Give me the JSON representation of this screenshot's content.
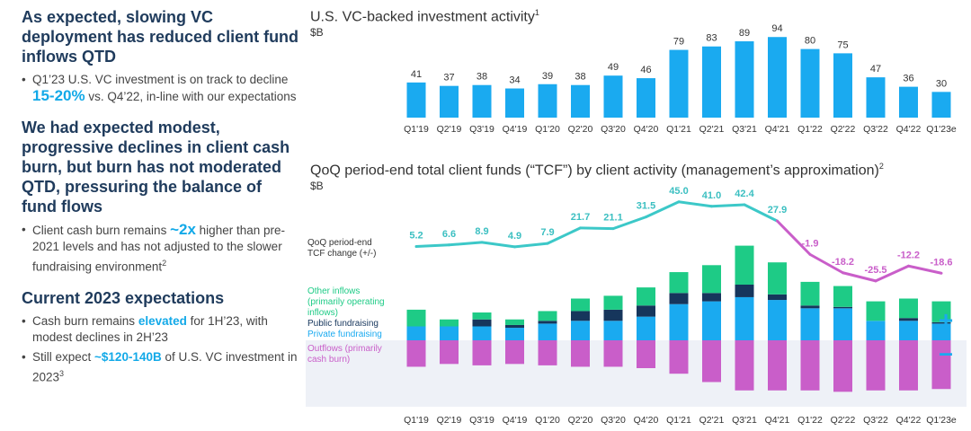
{
  "left": {
    "sections": [
      {
        "heading": "As expected, slowing VC deployment has reduced client fund inflows QTD",
        "bullets": [
          {
            "pre": "Q1’23 U.S. VC investment is on track to decline ",
            "hl": "15-20%",
            "post": " vs. Q4’22, in-line with our expectations",
            "sup": ""
          }
        ]
      },
      {
        "heading": "We had expected modest, progressive declines in client cash burn, but burn has not moderated QTD, pressuring the balance of fund flows",
        "bullets": [
          {
            "pre": "Client cash burn remains ",
            "hl": "~2x",
            "post": " higher than pre-2021 levels and has not adjusted to the slower fundraising environment",
            "sup": "2"
          }
        ]
      },
      {
        "heading": "Current 2023 expectations",
        "bullets": [
          {
            "pre": "Cash burn remains ",
            "hl": "elevated",
            "post": " for 1H’23, with modest declines in 2H’23",
            "sup": ""
          },
          {
            "pre": "Still expect ",
            "hl": "~$120-140B",
            "post": " of U.S. VC investment in 2023",
            "sup": "3"
          }
        ]
      }
    ]
  },
  "colors": {
    "bar_blue": "#1aaaf0",
    "tcf_pos": "#3cc8c8",
    "tcf_neg": "#c95ec9",
    "other": "#1ecb86",
    "public": "#16365c",
    "private": "#1aaaf0",
    "outflow": "#c95ec9",
    "shade": "#eef1f7"
  },
  "chart_data": [
    {
      "type": "bar",
      "title": "U.S. VC-backed investment activity",
      "title_sup": "1",
      "unit": "$B",
      "categories": [
        "Q1'19",
        "Q2'19",
        "Q3'19",
        "Q4'19",
        "Q1'20",
        "Q2'20",
        "Q3'20",
        "Q4'20",
        "Q1'21",
        "Q2'21",
        "Q3'21",
        "Q4'21",
        "Q1'22",
        "Q2'22",
        "Q3'22",
        "Q4'22",
        "Q1'23e"
      ],
      "values": [
        41,
        37,
        38,
        34,
        39,
        38,
        49,
        46,
        79,
        83,
        89,
        94,
        80,
        75,
        47,
        36,
        30
      ]
    },
    {
      "type": "bar",
      "title": "QoQ period-end total client funds (“TCF”) by client activity (management’s approximation)",
      "title_sup": "2",
      "unit": "$B",
      "categories": [
        "Q1'19",
        "Q2'19",
        "Q3'19",
        "Q4'19",
        "Q1'20",
        "Q2'20",
        "Q3'20",
        "Q4'20",
        "Q1'21",
        "Q2'21",
        "Q3'21",
        "Q4'21",
        "Q1'22",
        "Q2'22",
        "Q3'22",
        "Q4'22",
        "Q1'23e"
      ],
      "tcf_label": "QoQ period-end TCF change (+/-)",
      "tcf_change": [
        5.2,
        6.6,
        8.9,
        4.9,
        7.9,
        21.7,
        21.1,
        31.5,
        45.0,
        41.0,
        42.4,
        27.9,
        -1.9,
        -18.2,
        -25.5,
        -12.2,
        -18.6
      ],
      "tcf_change_labels": [
        "5.2",
        "6.6",
        "8.9",
        "4.9",
        "7.9",
        "21.7",
        "21.1",
        "31.5",
        "45.0",
        "41.0",
        "42.4",
        "27.9",
        "-1.9",
        "-18.2",
        "-25.5",
        "-12.2",
        "-18.6"
      ],
      "series": [
        {
          "name": "Private fundraising",
          "values": [
            10,
            10,
            10,
            9,
            12,
            14,
            14,
            17,
            26,
            28,
            31,
            29,
            23,
            23,
            14,
            14,
            12
          ]
        },
        {
          "name": "Public fundraising",
          "values": [
            0,
            0,
            5,
            2,
            2,
            7,
            8,
            8,
            8,
            6,
            9,
            4,
            2,
            1,
            0,
            2,
            1
          ]
        },
        {
          "name": "Other inflows (primarily operating inflows)",
          "values": [
            12,
            5,
            5,
            4,
            7,
            9,
            10,
            13,
            15,
            20,
            28,
            23,
            17,
            15,
            14,
            14,
            15
          ]
        },
        {
          "name": "Outflows (primarily cash burn)",
          "values": [
            -19,
            -17,
            -18,
            -17,
            -18,
            -19,
            -19,
            -20,
            -24,
            -30,
            -36,
            -36,
            -36,
            -37,
            -36,
            -36,
            -35
          ]
        }
      ],
      "legend": [
        "Other inflows (primarily operating inflows)",
        "Public fundraising",
        "Private fundraising",
        "Outflows (primarily cash burn)"
      ],
      "plus_sign": "+",
      "minus_sign": "–"
    }
  ]
}
